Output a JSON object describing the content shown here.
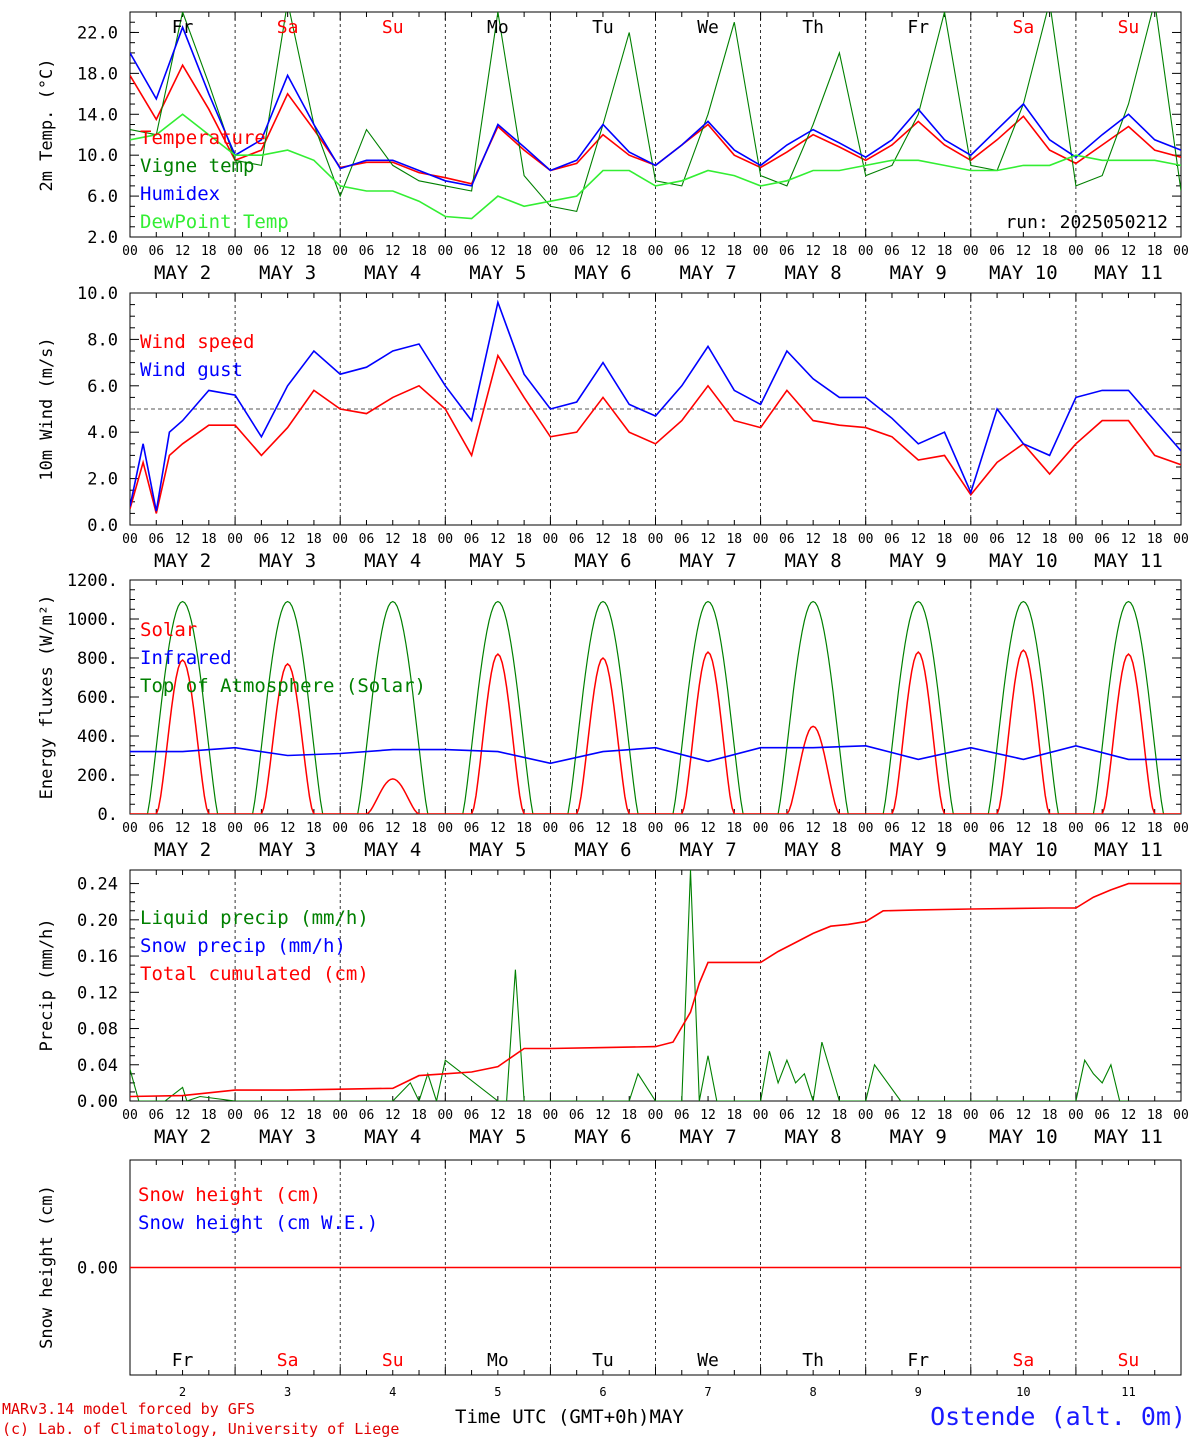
{
  "chart_data": [
    {
      "type": "line",
      "ylabel": "2m Temp. (°C)",
      "ylim": [
        2.0,
        24.0
      ],
      "yticks": [
        "2.0",
        "6.0",
        "10.0",
        "14.0",
        "18.0",
        "22.0"
      ],
      "run_label": "run: 2025050212",
      "legend": [
        "Temperature",
        "Vigne temp",
        "Humidex",
        "DewPoint Temp"
      ],
      "x_unit": "hours since MAY 2 00 UTC",
      "series": [
        {
          "name": "Temperature",
          "color": "#ff0000",
          "x": [
            0,
            6,
            12,
            18,
            24,
            30,
            36,
            42,
            48,
            54,
            60,
            66,
            72,
            78,
            84,
            90,
            96,
            102,
            108,
            114,
            120,
            126,
            132,
            138,
            144,
            150,
            156,
            162,
            168,
            174,
            180,
            186,
            192,
            198,
            204,
            210,
            216,
            222,
            228,
            234,
            240
          ],
          "y": [
            17.8,
            13.5,
            18.8,
            14.5,
            9.5,
            10.5,
            16.0,
            12.5,
            8.8,
            9.3,
            9.3,
            8.3,
            7.8,
            7.2,
            12.8,
            10.5,
            8.5,
            9.2,
            12.0,
            10.0,
            9.0,
            11.0,
            13.0,
            10.0,
            8.8,
            10.3,
            12.0,
            10.8,
            9.5,
            11.0,
            13.3,
            11.0,
            9.5,
            11.5,
            13.8,
            10.5,
            9.2,
            11.0,
            12.8,
            10.5,
            9.8
          ]
        },
        {
          "name": "Vigne temp",
          "color": "#008000",
          "x": [
            0,
            6,
            12,
            18,
            24,
            30,
            36,
            42,
            48,
            54,
            60,
            66,
            72,
            78,
            84,
            90,
            96,
            102,
            108,
            114,
            120,
            126,
            132,
            138,
            144,
            150,
            156,
            162,
            168,
            174,
            180,
            186,
            192,
            198,
            204,
            210,
            216,
            222,
            228,
            234,
            240
          ],
          "y": [
            12.5,
            12.0,
            24.0,
            17.0,
            9.5,
            9.0,
            25.0,
            13.0,
            6.0,
            12.5,
            9.0,
            7.5,
            7.0,
            6.5,
            24.0,
            8.0,
            5.0,
            4.5,
            13.0,
            22.0,
            7.5,
            7.0,
            14.0,
            23.0,
            8.0,
            7.0,
            13.0,
            20.0,
            8.0,
            9.0,
            14.0,
            24.0,
            9.0,
            8.5,
            15.0,
            25.0,
            7.0,
            8.0,
            15.0,
            25.0,
            6.5
          ]
        },
        {
          "name": "Humidex",
          "color": "#0000ff",
          "x": [
            0,
            6,
            12,
            18,
            24,
            30,
            36,
            42,
            48,
            54,
            60,
            66,
            72,
            78,
            84,
            90,
            96,
            102,
            108,
            114,
            120,
            126,
            132,
            138,
            144,
            150,
            156,
            162,
            168,
            174,
            180,
            186,
            192,
            198,
            204,
            210,
            216,
            222,
            228,
            234,
            240
          ],
          "y": [
            20.0,
            15.5,
            22.5,
            16.0,
            10.0,
            11.5,
            17.8,
            13.0,
            8.7,
            9.5,
            9.5,
            8.5,
            7.5,
            7.0,
            13.0,
            10.8,
            8.5,
            9.5,
            13.0,
            10.3,
            9.0,
            11.0,
            13.3,
            10.5,
            9.0,
            11.0,
            12.5,
            11.2,
            9.8,
            11.5,
            14.5,
            11.5,
            10.0,
            12.5,
            15.0,
            11.5,
            9.8,
            12.0,
            14.0,
            11.5,
            10.5
          ]
        },
        {
          "name": "DewPoint Temp",
          "color": "#33ee33",
          "x": [
            0,
            6,
            12,
            18,
            24,
            30,
            36,
            42,
            48,
            54,
            60,
            66,
            72,
            78,
            84,
            90,
            96,
            102,
            108,
            114,
            120,
            126,
            132,
            138,
            144,
            150,
            156,
            162,
            168,
            174,
            180,
            186,
            192,
            198,
            204,
            210,
            216,
            222,
            228,
            234,
            240
          ],
          "y": [
            11.5,
            12.0,
            14.0,
            12.0,
            10.0,
            10.0,
            10.5,
            9.5,
            7.0,
            6.5,
            6.5,
            5.5,
            4.0,
            3.8,
            6.0,
            5.0,
            5.5,
            6.0,
            8.5,
            8.5,
            7.0,
            7.5,
            8.5,
            8.0,
            7.0,
            7.5,
            8.5,
            8.5,
            9.0,
            9.5,
            9.5,
            9.0,
            8.5,
            8.5,
            9.0,
            9.0,
            10.0,
            9.5,
            9.5,
            9.5,
            9.0
          ]
        }
      ]
    },
    {
      "type": "line",
      "ylabel": "10m Wind (m/s)",
      "ylim": [
        0.0,
        10.0
      ],
      "yticks": [
        "0.0",
        "2.0",
        "4.0",
        "6.0",
        "8.0",
        "10.0"
      ],
      "reference_line": 5.0,
      "legend": [
        "Wind speed",
        "Wind gust"
      ],
      "x_unit": "hours since MAY 2 00 UTC",
      "series": [
        {
          "name": "Wind speed",
          "color": "#ff0000",
          "x": [
            0,
            3,
            6,
            9,
            12,
            18,
            24,
            30,
            36,
            42,
            48,
            54,
            60,
            66,
            72,
            78,
            84,
            90,
            96,
            102,
            108,
            114,
            120,
            126,
            132,
            138,
            144,
            150,
            156,
            162,
            168,
            174,
            180,
            186,
            192,
            198,
            204,
            210,
            216,
            222,
            228,
            234,
            240
          ],
          "y": [
            0.7,
            2.7,
            0.5,
            3.0,
            3.5,
            4.3,
            4.3,
            3.0,
            4.2,
            5.8,
            5.0,
            4.8,
            5.5,
            6.0,
            5.0,
            3.0,
            7.3,
            5.5,
            3.8,
            4.0,
            5.5,
            4.0,
            3.5,
            4.5,
            6.0,
            4.5,
            4.2,
            5.8,
            4.5,
            4.3,
            4.2,
            3.8,
            2.8,
            3.0,
            1.3,
            2.7,
            3.5,
            2.2,
            3.5,
            4.5,
            4.5,
            3.0,
            2.6
          ]
        },
        {
          "name": "Wind gust",
          "color": "#0000ff",
          "x": [
            0,
            3,
            6,
            9,
            12,
            18,
            24,
            30,
            36,
            42,
            48,
            54,
            60,
            66,
            72,
            78,
            84,
            90,
            96,
            102,
            108,
            114,
            120,
            126,
            132,
            138,
            144,
            150,
            156,
            162,
            168,
            174,
            180,
            186,
            192,
            198,
            204,
            210,
            216,
            222,
            228,
            234,
            240
          ],
          "y": [
            0.8,
            3.5,
            0.6,
            4.0,
            4.5,
            5.8,
            5.6,
            3.8,
            6.0,
            7.5,
            6.5,
            6.8,
            7.5,
            7.8,
            6.0,
            4.5,
            9.6,
            6.5,
            5.0,
            5.3,
            7.0,
            5.2,
            4.7,
            6.0,
            7.7,
            5.8,
            5.2,
            7.5,
            6.3,
            5.5,
            5.5,
            4.6,
            3.5,
            4.0,
            1.4,
            5.0,
            3.5,
            3.0,
            5.5,
            5.8,
            5.8,
            4.5,
            3.2
          ]
        }
      ]
    },
    {
      "type": "line",
      "ylabel": "Energy fluxes (W/m²)",
      "ylim": [
        0,
        1200
      ],
      "yticks": [
        "0.",
        "200.",
        "400.",
        "600.",
        "800.",
        "1000.",
        "1200."
      ],
      "legend": [
        "Solar",
        "Infrared",
        "Top of Atmosphere (Solar)"
      ],
      "x_unit": "hours since MAY 2 00 UTC",
      "days": 10,
      "toa_peak": 1090,
      "solar_peaks": [
        790,
        770,
        180,
        820,
        800,
        830,
        450,
        830,
        840,
        820
      ],
      "series": [
        {
          "name": "Infrared",
          "color": "#0000ff",
          "x": [
            0,
            12,
            24,
            36,
            48,
            60,
            72,
            84,
            96,
            108,
            120,
            132,
            144,
            156,
            168,
            180,
            192,
            204,
            216,
            228,
            240
          ],
          "y": [
            320,
            320,
            340,
            300,
            310,
            330,
            330,
            320,
            260,
            320,
            340,
            270,
            340,
            340,
            350,
            280,
            340,
            280,
            350,
            280,
            280
          ]
        }
      ]
    },
    {
      "type": "line",
      "ylabel": "Precip (mm/h)",
      "ylim": [
        0.0,
        0.25
      ],
      "yticks": [
        "0.00",
        "0.04",
        "0.08",
        "0.12",
        "0.16",
        "0.20",
        "0.24"
      ],
      "legend": [
        "Liquid precip (mm/h)",
        "Snow precip (mm/h)",
        "Total cumulated (cm)"
      ],
      "x_unit": "hours since MAY 2 00 UTC",
      "series": [
        {
          "name": "Liquid precip (mm/h)",
          "color": "#008000",
          "x": [
            0,
            2,
            4,
            8,
            12,
            13,
            16,
            24,
            60,
            64,
            66,
            68,
            70,
            72,
            84,
            86,
            88,
            90,
            92,
            96,
            114,
            116,
            120,
            126,
            128,
            130,
            132,
            134,
            136,
            138,
            144,
            146,
            148,
            150,
            152,
            154,
            156,
            158,
            162,
            166,
            168,
            170,
            176,
            180,
            184,
            216,
            218,
            220,
            222,
            224,
            226,
            228
          ],
          "y": [
            0.035,
            0.0,
            0.0,
            0.0,
            0.015,
            0.0,
            0.005,
            0.0,
            0.0,
            0.02,
            0.0,
            0.03,
            0.0,
            0.045,
            0.0,
            0.0,
            0.145,
            0.0,
            0.0,
            0.0,
            0.0,
            0.03,
            0.0,
            0.0,
            0.255,
            0.0,
            0.05,
            0.0,
            0.0,
            0.0,
            0.0,
            0.055,
            0.02,
            0.045,
            0.02,
            0.03,
            0.0,
            0.065,
            0.0,
            0.0,
            0.0,
            0.04,
            0.0,
            0.0,
            0.0,
            0.0,
            0.045,
            0.03,
            0.02,
            0.04,
            0.0,
            0.0
          ]
        },
        {
          "name": "Total cumulated (cm)",
          "color": "#ff0000",
          "x": [
            0,
            12,
            24,
            36,
            48,
            60,
            66,
            72,
            78,
            84,
            90,
            96,
            108,
            120,
            124,
            128,
            130,
            132,
            138,
            144,
            148,
            152,
            156,
            160,
            164,
            168,
            172,
            180,
            192,
            210,
            216,
            220,
            224,
            228,
            240
          ],
          "y": [
            0.005,
            0.006,
            0.012,
            0.012,
            0.013,
            0.014,
            0.028,
            0.03,
            0.032,
            0.038,
            0.058,
            0.058,
            0.059,
            0.06,
            0.065,
            0.098,
            0.13,
            0.153,
            0.153,
            0.153,
            0.165,
            0.175,
            0.185,
            0.193,
            0.195,
            0.198,
            0.21,
            0.211,
            0.212,
            0.213,
            0.213,
            0.225,
            0.233,
            0.24,
            0.24
          ]
        }
      ]
    },
    {
      "type": "line",
      "ylabel": "Snow height (cm)",
      "yticks": [
        "0.00"
      ],
      "legend": [
        "Snow height (cm)",
        "Snow height (cm W.E.)"
      ],
      "x_unit": "hours since MAY 2 00 UTC",
      "series": [
        {
          "name": "Snow height (cm)",
          "color": "#ff0000",
          "x": [
            0,
            240
          ],
          "y": [
            0.0,
            0.0
          ]
        }
      ]
    }
  ],
  "weekdays": [
    {
      "label": "Fr",
      "color": "#000000"
    },
    {
      "label": "Sa",
      "color": "#ff0000"
    },
    {
      "label": "Su",
      "color": "#ff0000"
    },
    {
      "label": "Mo",
      "color": "#000000"
    },
    {
      "label": "Tu",
      "color": "#000000"
    },
    {
      "label": "We",
      "color": "#000000"
    },
    {
      "label": "Th",
      "color": "#000000"
    },
    {
      "label": "Fr",
      "color": "#000000"
    },
    {
      "label": "Sa",
      "color": "#ff0000"
    },
    {
      "label": "Su",
      "color": "#ff0000"
    }
  ],
  "hour_ticks": [
    "00",
    "06",
    "12",
    "18"
  ],
  "final_hour_tick": "00",
  "date_labels": [
    "MAY  2",
    "MAY  3",
    "MAY  4",
    "MAY  5",
    "MAY  6",
    "MAY  7",
    "MAY  8",
    "MAY  9",
    "MAY 10",
    "MAY 11"
  ],
  "bottom_day_numbers": [
    "2",
    "3",
    "4",
    "5",
    "6",
    "7",
    "8",
    "9",
    "10",
    "11"
  ],
  "footer": {
    "model_line": "MARv3.14 model forced by GFS",
    "credit_line": "(c) Lab. of Climatology, University of Liege",
    "time_label": "Time UTC (GMT+0h)MAY",
    "station": "Ostende (alt. 0m)"
  }
}
